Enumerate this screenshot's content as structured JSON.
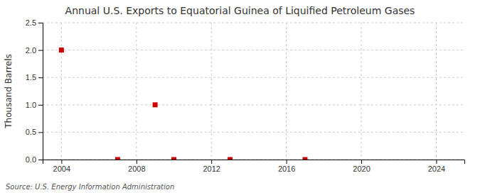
{
  "chart_data": {
    "type": "scatter",
    "title": "Annual U.S. Exports to Equatorial Guinea of Liquified Petroleum Gases",
    "ylabel": "Thousand Barrels",
    "source": "Source: U.S. Energy Information Administration",
    "x": [
      2004,
      2007,
      2009,
      2010,
      2013,
      2017
    ],
    "values": [
      2.0,
      0.0,
      1.0,
      0.0,
      0.0,
      0.0
    ],
    "color": "#cc0000",
    "marker": "square",
    "xlim": [
      2003,
      2025.5
    ],
    "ylim": [
      0,
      2.5
    ],
    "xticks": [
      2004,
      2008,
      2012,
      2016,
      2020,
      2024
    ],
    "yticks": [
      {
        "value": 0,
        "label": "0.0"
      },
      0.5,
      {
        "value": 1,
        "label": "1.0"
      },
      1.5,
      {
        "value": 2,
        "label": "2.0"
      },
      2.5
    ],
    "grid": true
  }
}
